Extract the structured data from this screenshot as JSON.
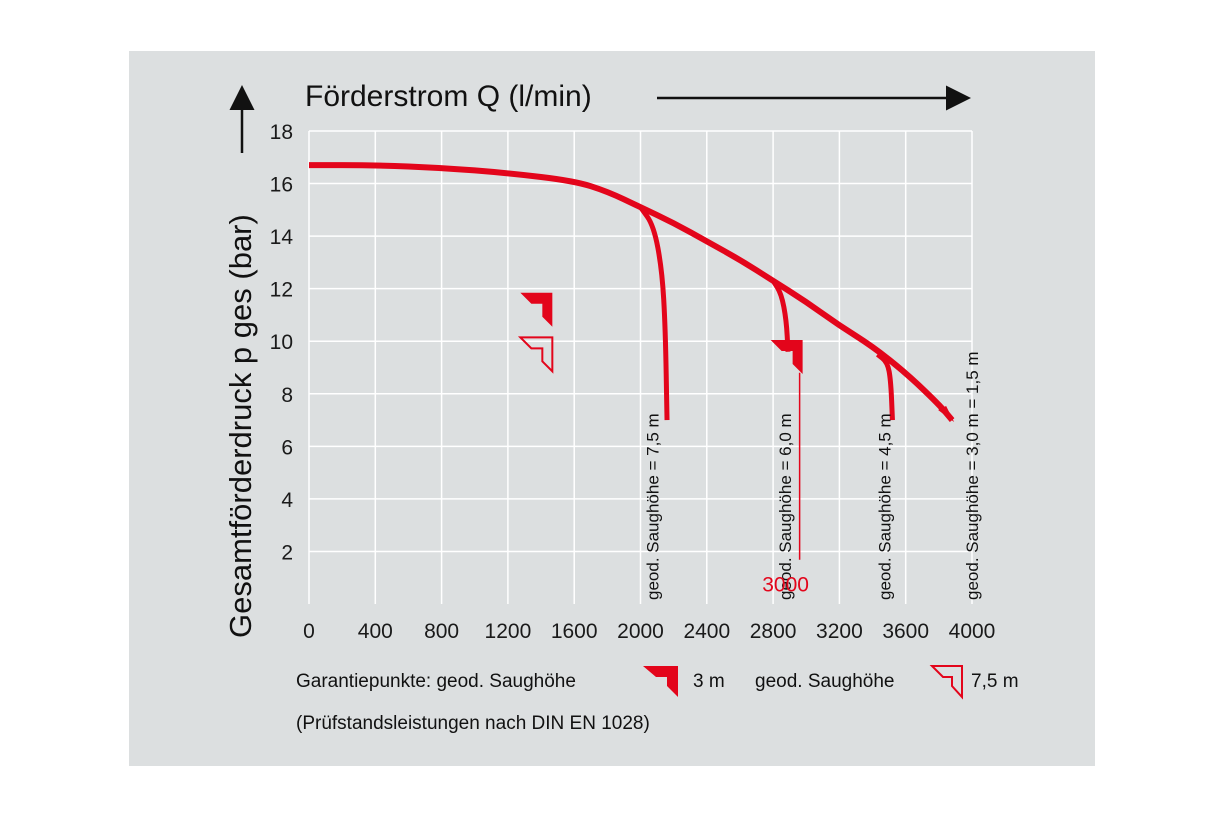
{
  "chart_data": {
    "type": "line",
    "xlabel": "Förderstrom Q (l/min)",
    "ylabel": "Gesamtförderdruck p ges (bar)",
    "xlim": [
      0,
      4000
    ],
    "ylim": [
      0,
      18
    ],
    "x_ticks": [
      0,
      400,
      800,
      1200,
      1600,
      2000,
      2400,
      2800,
      3200,
      3600,
      4000
    ],
    "y_ticks": [
      2,
      4,
      6,
      8,
      10,
      12,
      14,
      16,
      18
    ],
    "grid": true,
    "main_curve": {
      "x": [
        0,
        400,
        800,
        1200,
        1600,
        1800,
        2000,
        2200,
        2400,
        2600,
        2800,
        3000,
        3200,
        3400,
        3600,
        3800,
        3880
      ],
      "y": [
        16.7,
        16.7,
        16.6,
        16.4,
        16.1,
        15.7,
        15.1,
        14.5,
        13.8,
        13.1,
        12.3,
        11.5,
        10.6,
        9.8,
        8.8,
        7.6,
        7.0
      ]
    },
    "series": [
      {
        "name": "geod. Saughöhe = 7,5 m",
        "x": [
          2000,
          2080,
          2130,
          2150,
          2160
        ],
        "y": [
          15.1,
          14.4,
          12.7,
          10.5,
          7.0
        ]
      },
      {
        "name": "geod. Saughöhe = 6,0 m",
        "x": [
          2800,
          2850,
          2880,
          2890
        ],
        "y": [
          12.3,
          11.8,
          10.8,
          9.6
        ]
      },
      {
        "name": "geod. Saughöhe = 4,5 m",
        "x": [
          3430,
          3490,
          3510,
          3520
        ],
        "y": [
          9.5,
          9.2,
          8.5,
          7.0
        ]
      },
      {
        "name": "geod. Saughöhe = 3,0 m = 1,5 m",
        "x": [
          3800,
          3880
        ],
        "y": [
          7.6,
          7.0
        ]
      }
    ],
    "guarantee_points": [
      {
        "type": "filled",
        "x": 1450,
        "y": 11.2
      },
      {
        "type": "outline",
        "x": 1450,
        "y": 9.5
      },
      {
        "type": "filled",
        "x": 2960,
        "y": 9.4
      }
    ],
    "annotation": {
      "text": "3000",
      "x": 2960,
      "y": 1
    },
    "colors": {
      "curve": "#e3051b",
      "panel": "#dcdfe0",
      "grid": "#ffffff",
      "text": "#111111"
    }
  },
  "footer": {
    "line1_prefix": "Garantiepunkte: geod. Saughöhe",
    "line1_value1": "3 m",
    "line1_mid": "geod. Saughöhe",
    "line1_value2": "7,5 m",
    "line2": "(Prüfstandsleistungen nach DIN EN 1028)"
  }
}
